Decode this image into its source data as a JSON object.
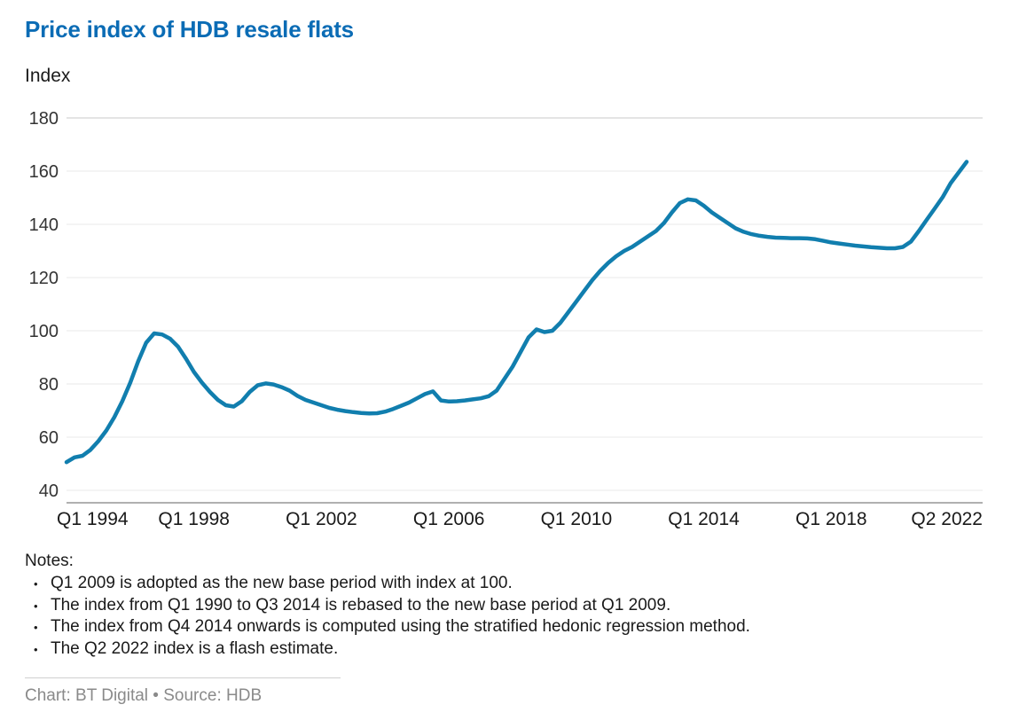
{
  "header": {
    "title": "Price index of HDB resale flats",
    "axis_unit_label": "Index"
  },
  "chart_data": {
    "type": "line",
    "series_name": "HDB resale flat price index",
    "frequency": "quarterly",
    "x_start": "Q1 1994",
    "x_end": "Q2 2022",
    "x_tick_labels": [
      "Q1 1994",
      "Q1 1998",
      "Q1 2002",
      "Q1 2006",
      "Q1 2010",
      "Q1 2014",
      "Q1 2018",
      "Q2 2022"
    ],
    "x_tick_indices": [
      0,
      16,
      32,
      48,
      64,
      80,
      96,
      113
    ],
    "y_ticks": [
      40,
      60,
      80,
      100,
      120,
      140,
      160,
      180
    ],
    "ylim": [
      40,
      180
    ],
    "grid": "horizontal",
    "line_color": "#117eae",
    "values": [
      50.6,
      52.4,
      53.0,
      55.2,
      58.5,
      62.5,
      67.5,
      73.5,
      80.5,
      88.5,
      95.5,
      99.0,
      98.6,
      97.0,
      94.0,
      89.5,
      84.5,
      80.5,
      77.0,
      74.0,
      72.0,
      71.5,
      73.5,
      77.0,
      79.5,
      80.2,
      79.8,
      78.8,
      77.5,
      75.5,
      74.0,
      73.0,
      72.0,
      71.0,
      70.3,
      69.8,
      69.4,
      69.1,
      68.9,
      69.0,
      69.6,
      70.6,
      71.8,
      73.0,
      74.6,
      76.2,
      77.2,
      73.8,
      73.4,
      73.5,
      73.8,
      74.2,
      74.6,
      75.4,
      77.5,
      82.0,
      86.5,
      92.0,
      97.5,
      100.5,
      99.5,
      100.0,
      103.0,
      107.0,
      111.0,
      115.0,
      119.0,
      122.5,
      125.5,
      128.0,
      130.0,
      131.5,
      133.5,
      135.5,
      137.5,
      140.5,
      144.5,
      148.0,
      149.4,
      149.0,
      147.0,
      144.5,
      142.5,
      140.5,
      138.5,
      137.2,
      136.3,
      135.7,
      135.3,
      135.0,
      134.9,
      134.8,
      134.8,
      134.7,
      134.4,
      133.8,
      133.2,
      132.8,
      132.4,
      132.0,
      131.7,
      131.4,
      131.2,
      131.0,
      131.0,
      131.5,
      133.5,
      137.5,
      141.8,
      146.0,
      150.3,
      155.5,
      159.5,
      163.5
    ]
  },
  "notes": {
    "label": "Notes:",
    "bullet": "•",
    "items": [
      "Q1 2009 is adopted as the new base period with index at 100.",
      "The index from Q1 1990 to Q3 2014 is rebased to the new base period at Q1 2009.",
      "The index from Q4 2014 onwards is computed using the stratified hedonic regression method.",
      "The Q2 2022 index is a flash estimate."
    ]
  },
  "footer": {
    "text": "Chart: BT Digital • Source: HDB"
  },
  "colors": {
    "title": "#0b6cb5",
    "line": "#117eae",
    "text": "#1a1a1a",
    "muted": "#8a8a8a",
    "grid": "#e9e9e9",
    "grid_top": "#c9c9c9",
    "axis": "#606060",
    "divider": "#d0d0d0"
  }
}
